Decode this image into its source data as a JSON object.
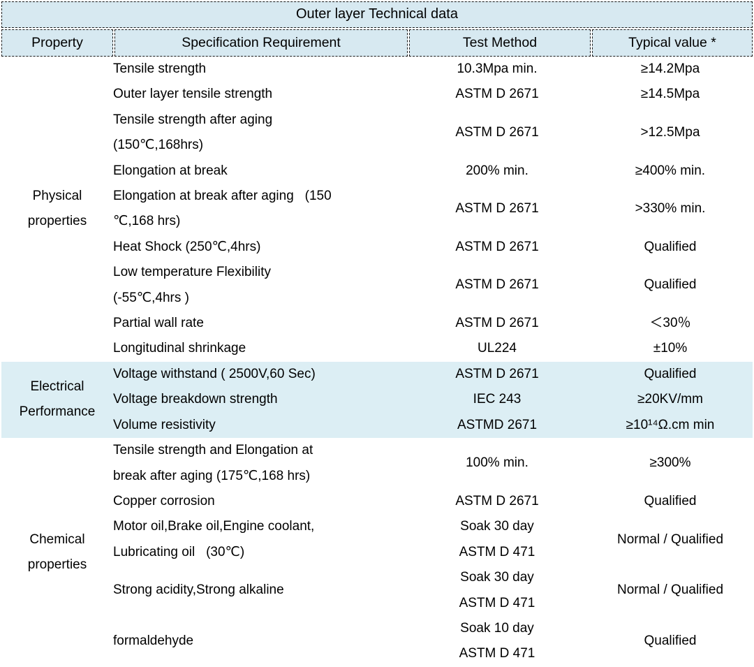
{
  "colors": {
    "header_bg": "#d7e9f1",
    "highlight_band_bg": "#dceef4",
    "border": "#1a1a1a",
    "text": "#000000"
  },
  "table": {
    "title": "Outer layer Technical data",
    "columns": [
      "Property",
      "Specification Requirement",
      "Test Method",
      "Typical value *"
    ],
    "sections": [
      {
        "property": [
          "Physical",
          "properties"
        ],
        "highlighted": false,
        "rows": [
          {
            "spec": [
              "Tensile strength"
            ],
            "method": [
              "10.3Mpa min."
            ],
            "value": [
              "≥14.2Mpa"
            ]
          },
          {
            "spec": [
              "Outer layer tensile strength"
            ],
            "method": [
              "ASTM D 2671"
            ],
            "value": [
              "≥14.5Mpa"
            ]
          },
          {
            "spec": [
              "Tensile strength after aging",
              "(150℃,168hrs)"
            ],
            "method": [
              "ASTM D 2671"
            ],
            "value": [
              ">12.5Mpa"
            ]
          },
          {
            "spec": [
              "Elongation at break"
            ],
            "method": [
              "200% min."
            ],
            "value": [
              "≥400% min."
            ]
          },
          {
            "spec": [
              "Elongation at break after aging   (150",
              "℃,168 hrs)"
            ],
            "method": [
              "ASTM D 2671"
            ],
            "value": [
              ">330% min."
            ]
          },
          {
            "spec": [
              "Heat Shock (250℃,4hrs)"
            ],
            "method": [
              "ASTM D 2671"
            ],
            "value": [
              "Qualified"
            ]
          },
          {
            "spec": [
              "Low temperature Flexibility",
              "(-55℃,4hrs )"
            ],
            "method": [
              "ASTM D 2671"
            ],
            "value": [
              "Qualified"
            ]
          },
          {
            "spec": [
              "Partial wall rate"
            ],
            "method": [
              "ASTM D 2671"
            ],
            "value": [
              "＜30％"
            ]
          },
          {
            "spec": [
              "Longitudinal shrinkage"
            ],
            "method": [
              "UL224"
            ],
            "value": [
              "±10%"
            ]
          }
        ]
      },
      {
        "property": [
          "Electrical",
          "Performance"
        ],
        "highlighted": true,
        "rows": [
          {
            "spec": [
              "Voltage withstand ( 2500V,60 Sec)"
            ],
            "method": [
              "ASTM D 2671"
            ],
            "value": [
              "Qualified"
            ]
          },
          {
            "spec": [
              "Voltage breakdown strength"
            ],
            "method": [
              "IEC 243"
            ],
            "value": [
              "≥20KV/mm"
            ]
          },
          {
            "spec": [
              "Volume resistivity"
            ],
            "method": [
              "ASTMD 2671"
            ],
            "value": [
              "≥10¹⁴Ω.cm min"
            ]
          }
        ]
      },
      {
        "property": [
          "Chemical",
          "properties"
        ],
        "highlighted": false,
        "rows": [
          {
            "spec": [
              "Tensile strength and Elongation at",
              "break after aging (175℃,168 hrs)"
            ],
            "method": [
              "100% min."
            ],
            "value": [
              "≥300%"
            ]
          },
          {
            "spec": [
              "Copper corrosion"
            ],
            "method": [
              "ASTM D 2671"
            ],
            "value": [
              "Qualified"
            ]
          },
          {
            "spec": [
              "Motor oil,Brake oil,Engine coolant,",
              "Lubricating oil   (30℃)"
            ],
            "method": [
              "Soak 30 day",
              "ASTM D 471"
            ],
            "value": [
              "Normal / Qualified"
            ]
          },
          {
            "spec": [
              "Strong acidity,Strong alkaline"
            ],
            "method": [
              "Soak 30 day",
              "ASTM D 471"
            ],
            "value": [
              "Normal / Qualified"
            ]
          },
          {
            "spec": [
              "formaldehyde"
            ],
            "method": [
              "Soak 10 day",
              "ASTM D 471"
            ],
            "value": [
              "Qualified"
            ]
          }
        ]
      }
    ]
  }
}
